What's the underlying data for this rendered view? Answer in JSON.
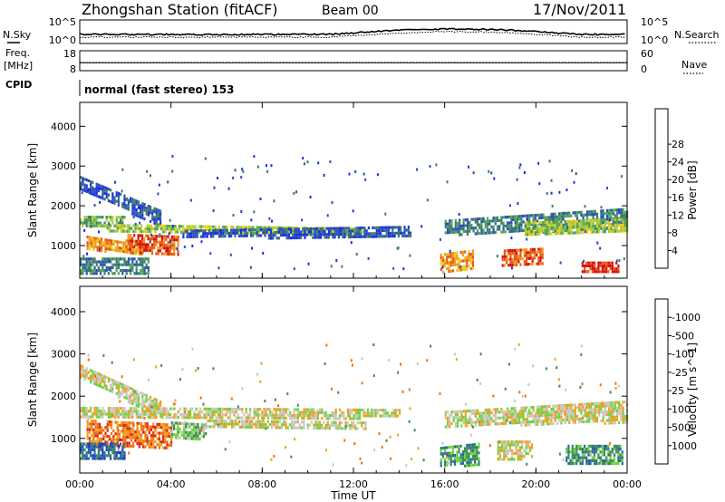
{
  "header": {
    "station": "Zhongshan Station (fitACF)",
    "beam": "Beam 00",
    "date": "17/Nov/2011"
  },
  "side_labels": {
    "nsky": "N.Sky",
    "nsearch": "N.Search",
    "freq_line1": "Freq.",
    "freq_line2": "[MHz]",
    "nave": "Nave",
    "cpid": "CPID"
  },
  "noise_panel": {
    "left_ticks": [
      "10^5",
      "10^0"
    ],
    "right_ticks": [
      "10^5",
      "10^0"
    ]
  },
  "freq_panel": {
    "left_ticks": [
      "18",
      "8"
    ],
    "right_ticks": [
      "60",
      "0"
    ],
    "freq_mhz": 12,
    "nave": 25
  },
  "cpid_text": "normal (fast stereo) 153",
  "chart_data": [
    {
      "type": "heatmap",
      "name": "power",
      "ylabel": "Slant Range [km]",
      "ylim": [
        180,
        4600
      ],
      "yticks": [
        "1000",
        "2000",
        "3000",
        "4000"
      ],
      "xlim_hours": [
        0,
        24
      ],
      "colorbar_label": "Power [dB]",
      "colorbar_ticks": [
        "4",
        "8",
        "12",
        "16",
        "20",
        "24",
        "28"
      ],
      "colorbar_colors": [
        "#1a2ee6",
        "#2a4fb8",
        "#3c7a6a",
        "#4fa45a",
        "#a6cf3a",
        "#e8cf1e",
        "#f09a1e",
        "#e85a12",
        "#d80f0f"
      ],
      "bands": [
        {
          "t": [
            0.0,
            3.5
          ],
          "r0": [
            2750,
            1900
          ],
          "r1": [
            2450,
            1500
          ],
          "level": 1
        },
        {
          "t": [
            0.0,
            2.0
          ],
          "r0": [
            1750,
            1750
          ],
          "r1": [
            1500,
            1500
          ],
          "level": 3
        },
        {
          "t": [
            1.0,
            12.5
          ],
          "r0": [
            1550,
            1450
          ],
          "r1": [
            1350,
            1300
          ],
          "level": 4
        },
        {
          "t": [
            0.3,
            3.0
          ],
          "r0": [
            1250,
            1000
          ],
          "r1": [
            900,
            800
          ],
          "level": 6
        },
        {
          "t": [
            2.0,
            4.3
          ],
          "r0": [
            1300,
            1250
          ],
          "r1": [
            800,
            750
          ],
          "level": 7
        },
        {
          "t": [
            4.5,
            14.5
          ],
          "r0": [
            1400,
            1500
          ],
          "r1": [
            1200,
            1250
          ],
          "level": 1
        },
        {
          "t": [
            16.0,
            24.0
          ],
          "r0": [
            1650,
            1950
          ],
          "r1": [
            1300,
            1400
          ],
          "level": 2
        },
        {
          "t": [
            19.5,
            24.0
          ],
          "r0": [
            1600,
            1700
          ],
          "r1": [
            1300,
            1350
          ],
          "level": 4
        },
        {
          "t": [
            15.8,
            17.2
          ],
          "r0": [
            800,
            900
          ],
          "r1": [
            350,
            400
          ],
          "level": 6
        },
        {
          "t": [
            18.5,
            20.3
          ],
          "r0": [
            900,
            950
          ],
          "r1": [
            500,
            550
          ],
          "level": 7
        },
        {
          "t": [
            22.0,
            23.6
          ],
          "r0": [
            600,
            600
          ],
          "r1": [
            350,
            350
          ],
          "level": 8
        },
        {
          "t": [
            0.0,
            3.0
          ],
          "r0": [
            700,
            700
          ],
          "r1": [
            300,
            300
          ],
          "level": 2
        }
      ],
      "scatter_density": 0.12
    },
    {
      "type": "heatmap",
      "name": "velocity",
      "ylabel": "Slant Range [km]",
      "ylim": [
        180,
        4600
      ],
      "yticks": [
        "1000",
        "2000",
        "3000",
        "4000"
      ],
      "xlim_hours": [
        0,
        24
      ],
      "xticks": [
        "00:00",
        "04:00",
        "08:00",
        "12:00",
        "16:00",
        "20:00",
        "00:00"
      ],
      "xlabel": "Time UT",
      "colorbar_label": "Velocity [m s^-1]",
      "colorbar_ticks": [
        "1000",
        "500",
        "100",
        "25",
        "-25",
        "-100",
        "-500",
        "-1000"
      ],
      "colorbar_colors": [
        "#1e3ccc",
        "#2a6a9c",
        "#3c8a5a",
        "#6cd43c",
        "#c8c8c0",
        "#f0a020",
        "#f07010",
        "#e02010",
        "#d80f0f"
      ],
      "bands": [
        {
          "t": [
            0.0,
            3.5
          ],
          "r0": [
            2750,
            1900
          ],
          "r1": [
            2450,
            1500
          ],
          "level": 4
        },
        {
          "t": [
            0.0,
            14.0
          ],
          "r0": [
            1750,
            1700
          ],
          "r1": [
            1500,
            1500
          ],
          "level": 4
        },
        {
          "t": [
            0.3,
            4.0
          ],
          "r0": [
            1450,
            1350
          ],
          "r1": [
            900,
            800
          ],
          "level": 6
        },
        {
          "t": [
            4.0,
            5.5
          ],
          "r0": [
            1400,
            1350
          ],
          "r1": [
            1000,
            1000
          ],
          "level": 3
        },
        {
          "t": [
            5.5,
            12.5
          ],
          "r0": [
            1450,
            1400
          ],
          "r1": [
            1250,
            1250
          ],
          "level": 4
        },
        {
          "t": [
            16.0,
            24.0
          ],
          "r0": [
            1650,
            1900
          ],
          "r1": [
            1300,
            1400
          ],
          "level": 4
        },
        {
          "t": [
            15.8,
            17.5
          ],
          "r0": [
            800,
            900
          ],
          "r1": [
            350,
            400
          ],
          "level": 2
        },
        {
          "t": [
            18.3,
            19.8
          ],
          "r0": [
            950,
            950
          ],
          "r1": [
            500,
            550
          ],
          "level": 4
        },
        {
          "t": [
            21.3,
            23.8
          ],
          "r0": [
            850,
            850
          ],
          "r1": [
            400,
            400
          ],
          "level": 2
        },
        {
          "t": [
            0.0,
            2.0
          ],
          "r0": [
            900,
            900
          ],
          "r1": [
            500,
            500
          ],
          "level": 1
        }
      ],
      "scatter_density": 0.12
    }
  ]
}
